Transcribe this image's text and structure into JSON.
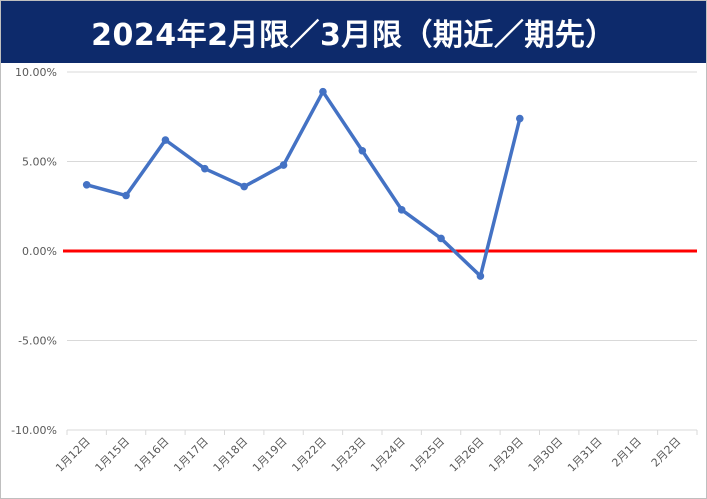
{
  "title": "2024年2月限／3月限（期近／期先）",
  "colors": {
    "title_bg": "#0d2a6b",
    "title_fg": "#ffffff",
    "series": "#4472c4",
    "zero_line": "#ff0000",
    "grid": "#d9d9d9",
    "tick": "#595959"
  },
  "chart_data": {
    "type": "line",
    "title": "2024年2月限／3月限（期近／期先）",
    "xlabel": "",
    "ylabel": "",
    "categories": [
      "1月12日",
      "1月15日",
      "1月16日",
      "1月17日",
      "1月18日",
      "1月19日",
      "1月22日",
      "1月23日",
      "1月24日",
      "1月25日",
      "1月26日",
      "1月29日",
      "1月30日",
      "1月31日",
      "2月1日",
      "2月2日"
    ],
    "series": [
      {
        "values": [
          3.7,
          3.1,
          6.2,
          4.6,
          3.6,
          4.8,
          8.9,
          5.6,
          2.3,
          0.7,
          -1.4,
          7.4,
          null,
          null,
          null,
          null
        ]
      }
    ],
    "ylim": [
      -10,
      10
    ],
    "yticks": [
      10,
      5,
      0,
      -5,
      -10
    ],
    "ytick_labels": [
      "10.00%",
      "5.00%",
      "0.00%",
      "-5.00%",
      "-10.00%"
    ],
    "unit": "%",
    "grid": true,
    "legend": "none",
    "reference_line": {
      "y": 0
    }
  }
}
